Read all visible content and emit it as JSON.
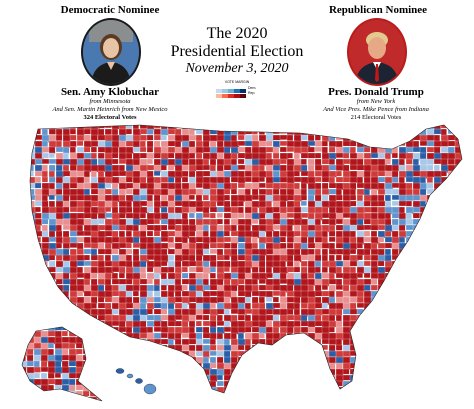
{
  "title_line1": "The 2020",
  "title_line2": "Presidential Election",
  "date": "November 3, 2020",
  "legend": {
    "title": "VOTE MARGIN",
    "dem_label": "Dem.",
    "rep_label": "Rep.",
    "dem_colors": [
      "#c6dbef",
      "#9ecae1",
      "#6baed6",
      "#2171b5",
      "#08306b"
    ],
    "rep_colors": [
      "#fcbba1",
      "#fb6a4a",
      "#de2d26",
      "#a50f15",
      "#67000d"
    ]
  },
  "democratic": {
    "heading": "Democratic Nominee",
    "name": "Sen. Amy Klobuchar",
    "home": "from Minnesota",
    "running_mate": "And Sen. Martin Heinrich from New Mexico",
    "electoral_votes": "324 Electoral Votes",
    "ring_color": "#1f3d8a",
    "bg_color": "#3b6ea8"
  },
  "republican": {
    "heading": "Republican Nominee",
    "name": "Pres. Donald Trump",
    "home": "from New York",
    "running_mate": "And Vice Pres. Mike Pence from Indiana",
    "electoral_votes": "214 Electoral Votes",
    "ring_color": "#b81c1c",
    "bg_color": "#b22222"
  },
  "map_colors": {
    "rep_dark": "#b0161c",
    "rep_mid": "#cf3b3b",
    "rep_light": "#e88f8f",
    "dem_light": "#a9c8e8",
    "dem_mid": "#5f94cf",
    "dem_dark": "#2a5fa8",
    "border": "#ffffff"
  }
}
